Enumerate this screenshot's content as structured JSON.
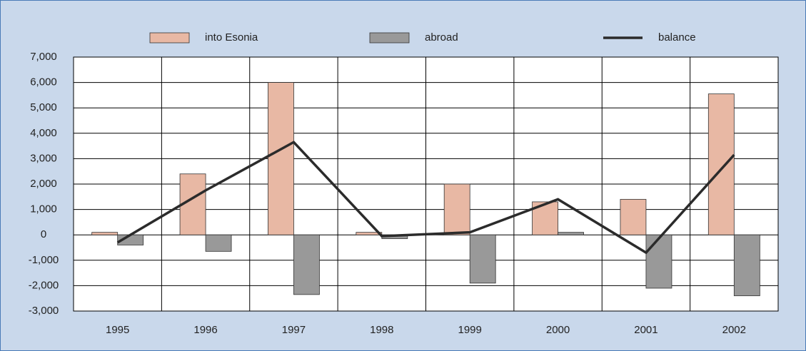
{
  "chart_data": {
    "type": "bar",
    "categories": [
      "1995",
      "1996",
      "1997",
      "1998",
      "1999",
      "2000",
      "2001",
      "2002"
    ],
    "series": [
      {
        "name": "into Esonia",
        "type": "bar",
        "color": "#e8b8a4",
        "values": [
          100,
          2400,
          6000,
          100,
          2000,
          1300,
          1400,
          5550
        ]
      },
      {
        "name": "abroad",
        "type": "bar",
        "color": "#999999",
        "values": [
          -400,
          -650,
          -2350,
          -150,
          -1900,
          100,
          -2100,
          -2400
        ]
      },
      {
        "name": "balance",
        "type": "line",
        "color": "#2b2b2b",
        "values": [
          -300,
          1750,
          3650,
          -50,
          100,
          1400,
          -700,
          3150
        ]
      }
    ],
    "ylim": [
      -3000,
      7000
    ],
    "yticks": [
      {
        "value": -3000,
        "label": "-3,000"
      },
      {
        "value": -2000,
        "label": "-2,000"
      },
      {
        "value": -1000,
        "label": "-1,000"
      },
      0,
      {
        "value": 1000,
        "label": "1,000"
      },
      {
        "value": 2000,
        "label": "2,000"
      },
      {
        "value": 3000,
        "label": "3,000"
      },
      {
        "value": 4000,
        "label": "4,000"
      },
      {
        "value": 5000,
        "label": "5,000"
      },
      {
        "value": 6000,
        "label": "6,000"
      },
      {
        "value": 7000,
        "label": "7,000"
      }
    ],
    "grid": true,
    "legend": "top"
  }
}
